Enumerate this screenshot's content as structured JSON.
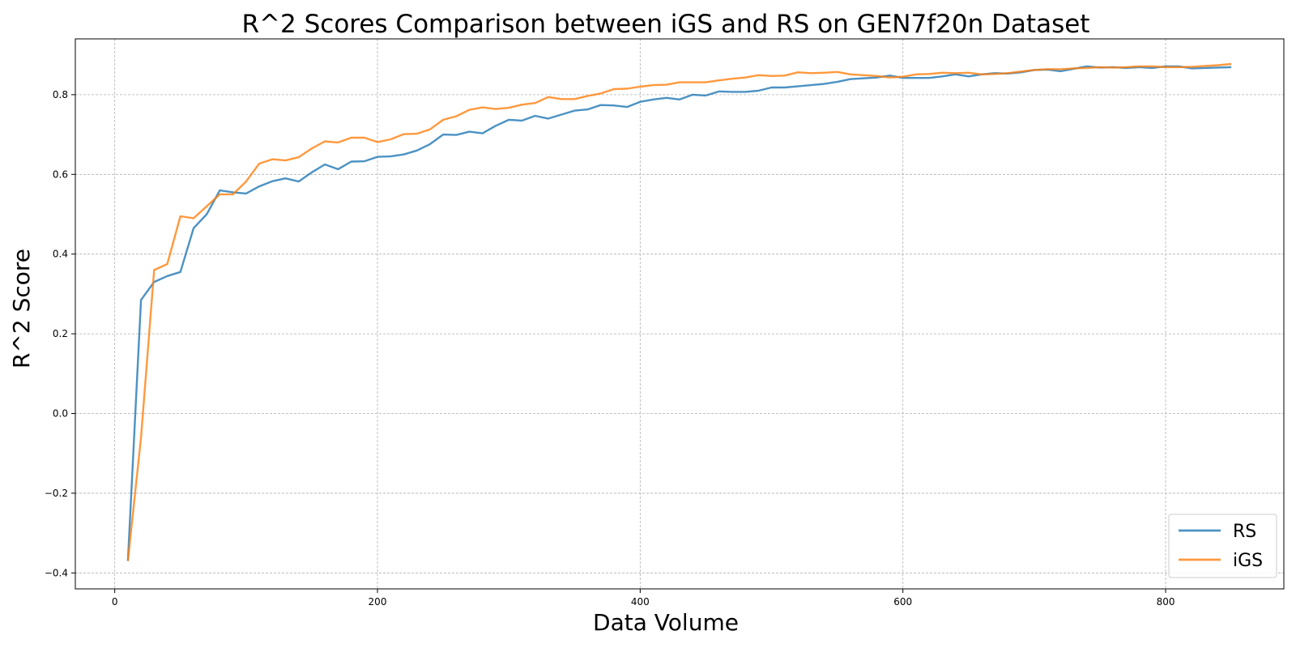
{
  "chart_data": {
    "type": "line",
    "title": "R^2 Scores Comparison between iGS and RS on GEN7f20n Dataset",
    "xlabel": "Data Volume",
    "ylabel": "R^2 Score",
    "xlim": [
      -30,
      890
    ],
    "ylim": [
      -0.44,
      0.94
    ],
    "x_ticks": [
      0,
      200,
      400,
      600,
      800
    ],
    "y_ticks": [
      -0.4,
      -0.2,
      0.0,
      0.2,
      0.4,
      0.6,
      0.8
    ],
    "x_tick_labels": [
      "0",
      "200",
      "400",
      "600",
      "800"
    ],
    "y_tick_labels": [
      "−0.4",
      "−0.2",
      "0.0",
      "0.2",
      "0.4",
      "0.6",
      "0.8"
    ],
    "grid": true,
    "legend_position": "bottom-right",
    "x": [
      10,
      20,
      30,
      40,
      50,
      60,
      70,
      80,
      90,
      100,
      110,
      120,
      130,
      140,
      150,
      160,
      170,
      180,
      190,
      200,
      210,
      220,
      230,
      240,
      250,
      260,
      270,
      280,
      290,
      300,
      310,
      320,
      330,
      340,
      350,
      360,
      370,
      380,
      390,
      400,
      410,
      420,
      430,
      440,
      450,
      460,
      470,
      480,
      490,
      500,
      510,
      520,
      530,
      540,
      550,
      560,
      570,
      580,
      590,
      600,
      610,
      620,
      630,
      640,
      650,
      660,
      670,
      680,
      690,
      700,
      710,
      720,
      730,
      740,
      750,
      760,
      770,
      780,
      790,
      800,
      810,
      820,
      830,
      840,
      850
    ],
    "series": [
      {
        "name": "RS",
        "color": "#1f77b4",
        "values": [
          -0.37,
          0.285,
          0.33,
          0.345,
          0.355,
          0.465,
          0.5,
          0.56,
          0.555,
          0.552,
          0.57,
          0.583,
          0.59,
          0.582,
          0.605,
          0.625,
          0.613,
          0.632,
          0.633,
          0.644,
          0.645,
          0.65,
          0.66,
          0.676,
          0.7,
          0.699,
          0.707,
          0.703,
          0.722,
          0.737,
          0.735,
          0.747,
          0.74,
          0.75,
          0.76,
          0.763,
          0.774,
          0.773,
          0.769,
          0.782,
          0.788,
          0.792,
          0.788,
          0.8,
          0.798,
          0.808,
          0.807,
          0.807,
          0.81,
          0.818,
          0.818,
          0.821,
          0.824,
          0.827,
          0.832,
          0.839,
          0.841,
          0.843,
          0.848,
          0.842,
          0.842,
          0.842,
          0.846,
          0.851,
          0.846,
          0.851,
          0.854,
          0.853,
          0.856,
          0.862,
          0.863,
          0.859,
          0.865,
          0.871,
          0.868,
          0.869,
          0.867,
          0.869,
          0.867,
          0.871,
          0.871,
          0.866,
          0.867,
          0.868,
          0.869
        ]
      },
      {
        "name": "iGS",
        "color": "#ff7f0e",
        "values": [
          -0.37,
          -0.06,
          0.36,
          0.375,
          0.495,
          0.49,
          0.52,
          0.55,
          0.55,
          0.582,
          0.627,
          0.638,
          0.635,
          0.643,
          0.665,
          0.683,
          0.68,
          0.692,
          0.692,
          0.681,
          0.688,
          0.701,
          0.702,
          0.713,
          0.737,
          0.746,
          0.762,
          0.768,
          0.764,
          0.767,
          0.775,
          0.779,
          0.794,
          0.789,
          0.789,
          0.797,
          0.803,
          0.814,
          0.815,
          0.82,
          0.824,
          0.825,
          0.831,
          0.831,
          0.831,
          0.836,
          0.84,
          0.843,
          0.849,
          0.847,
          0.848,
          0.856,
          0.854,
          0.855,
          0.857,
          0.851,
          0.849,
          0.847,
          0.843,
          0.845,
          0.851,
          0.852,
          0.855,
          0.854,
          0.855,
          0.851,
          0.852,
          0.854,
          0.858,
          0.862,
          0.864,
          0.864,
          0.866,
          0.867,
          0.869,
          0.868,
          0.869,
          0.871,
          0.871,
          0.869,
          0.869,
          0.87,
          0.872,
          0.874,
          0.877
        ]
      }
    ]
  }
}
